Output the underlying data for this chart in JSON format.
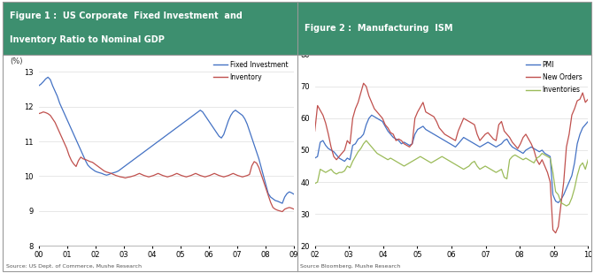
{
  "fig1_title_line1": "Figure 1 :  US Corporate  Fixed Investment  and",
  "fig1_title_line2": "Inventory Ratio to Nominal GDP",
  "fig2_title": "Figure 2 :  Manufacturing  ISM",
  "header_color": "#3d8f6f",
  "header_text_color": "#ffffff",
  "background_color": "#ffffff",
  "border_color": "#999999",
  "fig1_ylabel": "(%)",
  "fig1_ylim": [
    8,
    13.5
  ],
  "fig1_yticks": [
    8,
    9,
    10,
    11,
    12,
    13
  ],
  "fig1_xticks": [
    "00",
    "01",
    "02",
    "03",
    "04",
    "05",
    "06",
    "07",
    "08",
    "09"
  ],
  "fig1_source": "Source: US Dept. of Commerce, Mushe Research",
  "fig2_ylim": [
    20,
    80
  ],
  "fig2_yticks": [
    20,
    30,
    40,
    50,
    60,
    70,
    80
  ],
  "fig2_xticks": [
    "02",
    "03",
    "04",
    "05",
    "06",
    "07",
    "08",
    "09",
    "10"
  ],
  "fig2_source": "Source Bloomberg, Mushe Research",
  "fixed_inv_color": "#4472c4",
  "inventory1_color": "#c0504d",
  "pmi_color": "#4472c4",
  "new_orders_color": "#c0504d",
  "inventories2_color": "#9bbb59",
  "fixed_investment": [
    12.6,
    12.65,
    12.72,
    12.8,
    12.85,
    12.78,
    12.6,
    12.45,
    12.3,
    12.1,
    11.95,
    11.8,
    11.65,
    11.5,
    11.35,
    11.2,
    11.05,
    10.9,
    10.75,
    10.6,
    10.45,
    10.32,
    10.25,
    10.2,
    10.15,
    10.12,
    10.1,
    10.08,
    10.05,
    10.03,
    10.05,
    10.08,
    10.1,
    10.12,
    10.15,
    10.2,
    10.25,
    10.3,
    10.35,
    10.4,
    10.45,
    10.5,
    10.55,
    10.6,
    10.65,
    10.7,
    10.75,
    10.8,
    10.85,
    10.9,
    10.95,
    11.0,
    11.05,
    11.1,
    11.15,
    11.2,
    11.25,
    11.3,
    11.35,
    11.4,
    11.45,
    11.5,
    11.55,
    11.6,
    11.65,
    11.7,
    11.75,
    11.8,
    11.85,
    11.9,
    11.85,
    11.75,
    11.65,
    11.55,
    11.45,
    11.35,
    11.25,
    11.15,
    11.1,
    11.2,
    11.4,
    11.6,
    11.75,
    11.85,
    11.9,
    11.85,
    11.8,
    11.75,
    11.65,
    11.5,
    11.3,
    11.1,
    10.9,
    10.7,
    10.5,
    10.25,
    10.0,
    9.75,
    9.5,
    9.4,
    9.35,
    9.3,
    9.28,
    9.25,
    9.22,
    9.4,
    9.5,
    9.55,
    9.52,
    9.48
  ],
  "inventory1": [
    11.8,
    11.82,
    11.85,
    11.83,
    11.8,
    11.75,
    11.65,
    11.55,
    11.4,
    11.25,
    11.1,
    10.95,
    10.8,
    10.6,
    10.45,
    10.35,
    10.28,
    10.45,
    10.55,
    10.5,
    10.48,
    10.45,
    10.42,
    10.4,
    10.35,
    10.3,
    10.25,
    10.2,
    10.15,
    10.12,
    10.1,
    10.08,
    10.05,
    10.02,
    10.0,
    9.98,
    9.97,
    9.95,
    9.97,
    9.98,
    10.0,
    10.02,
    10.05,
    10.08,
    10.05,
    10.02,
    10.0,
    9.98,
    10.0,
    10.02,
    10.05,
    10.08,
    10.05,
    10.02,
    10.0,
    9.98,
    10.0,
    10.02,
    10.05,
    10.08,
    10.05,
    10.02,
    10.0,
    9.98,
    10.0,
    10.02,
    10.05,
    10.08,
    10.05,
    10.02,
    10.0,
    9.98,
    10.0,
    10.02,
    10.05,
    10.08,
    10.05,
    10.02,
    10.0,
    9.98,
    10.0,
    10.02,
    10.05,
    10.08,
    10.05,
    10.02,
    10.0,
    9.98,
    10.0,
    10.02,
    10.05,
    10.3,
    10.42,
    10.38,
    10.25,
    10.05,
    9.85,
    9.65,
    9.45,
    9.25,
    9.1,
    9.05,
    9.02,
    9.0,
    8.98,
    9.05,
    9.08,
    9.1,
    9.08,
    9.05
  ],
  "pmi": [
    47.5,
    48.0,
    52.5,
    53.0,
    51.5,
    50.5,
    50.0,
    49.5,
    48.5,
    47.5,
    47.0,
    46.5,
    47.5,
    47.0,
    51.5,
    52.0,
    53.5,
    54.0,
    55.0,
    58.0,
    60.0,
    61.0,
    60.5,
    60.0,
    59.5,
    59.0,
    57.5,
    56.0,
    55.0,
    54.0,
    53.5,
    53.0,
    52.0,
    52.5,
    52.0,
    51.5,
    52.0,
    55.0,
    56.5,
    57.0,
    57.5,
    56.5,
    56.0,
    55.5,
    55.0,
    54.5,
    54.0,
    53.5,
    53.0,
    52.5,
    52.0,
    51.5,
    51.0,
    52.0,
    53.0,
    54.0,
    53.5,
    53.0,
    52.5,
    52.0,
    51.5,
    51.0,
    51.5,
    52.0,
    52.5,
    52.0,
    51.5,
    51.0,
    51.5,
    52.0,
    53.0,
    53.5,
    52.0,
    51.0,
    50.5,
    50.0,
    49.5,
    49.0,
    50.0,
    50.5,
    51.0,
    50.5,
    50.0,
    49.5,
    50.0,
    49.0,
    48.5,
    48.0,
    36.0,
    34.0,
    33.5,
    34.5,
    36.0,
    38.0,
    40.0,
    42.0,
    46.0,
    52.0,
    55.0,
    57.0,
    58.0,
    59.0
  ],
  "new_orders": [
    56.0,
    64.0,
    62.5,
    61.0,
    58.5,
    55.0,
    51.0,
    48.0,
    47.0,
    48.0,
    49.0,
    50.0,
    53.0,
    52.0,
    60.0,
    63.0,
    65.0,
    68.0,
    71.0,
    70.0,
    67.0,
    65.0,
    63.0,
    62.0,
    61.0,
    60.0,
    58.0,
    57.0,
    55.5,
    55.0,
    53.0,
    53.5,
    53.0,
    52.0,
    51.5,
    51.0,
    52.0,
    60.0,
    62.0,
    63.5,
    65.0,
    62.0,
    61.5,
    61.0,
    60.5,
    59.0,
    57.0,
    56.0,
    55.0,
    54.5,
    54.0,
    53.5,
    53.0,
    56.0,
    58.0,
    60.0,
    59.5,
    59.0,
    58.5,
    58.0,
    55.0,
    53.0,
    54.0,
    55.0,
    55.5,
    54.5,
    53.5,
    53.0,
    58.0,
    59.0,
    56.0,
    55.0,
    54.0,
    52.5,
    51.5,
    50.5,
    52.0,
    54.0,
    55.0,
    53.5,
    52.0,
    50.0,
    47.0,
    45.5,
    47.0,
    45.0,
    43.0,
    40.0,
    25.0,
    24.0,
    26.0,
    33.0,
    40.0,
    51.0,
    55.0,
    61.0,
    63.0,
    65.5,
    66.0,
    68.0,
    65.0,
    66.0
  ],
  "inventories2": [
    39.5,
    40.0,
    44.0,
    43.5,
    43.0,
    43.5,
    44.0,
    43.0,
    42.5,
    43.0,
    43.0,
    43.5,
    45.0,
    44.5,
    46.5,
    48.0,
    49.5,
    50.5,
    52.0,
    53.0,
    52.0,
    51.0,
    50.0,
    49.0,
    48.5,
    48.0,
    47.5,
    47.0,
    47.5,
    47.0,
    46.5,
    46.0,
    45.5,
    45.0,
    45.5,
    46.0,
    46.5,
    47.0,
    47.5,
    48.0,
    47.5,
    47.0,
    46.5,
    46.0,
    46.5,
    47.0,
    47.5,
    48.0,
    47.5,
    47.0,
    46.5,
    46.0,
    45.5,
    45.0,
    44.5,
    44.0,
    44.5,
    45.0,
    46.0,
    46.5,
    45.0,
    44.0,
    44.5,
    45.0,
    44.5,
    44.0,
    43.5,
    43.0,
    43.5,
    44.0,
    41.5,
    41.0,
    47.0,
    48.0,
    48.5,
    48.0,
    47.5,
    47.0,
    47.5,
    47.0,
    46.5,
    46.0,
    47.5,
    48.0,
    49.0,
    48.5,
    48.0,
    47.5,
    43.0,
    37.0,
    36.0,
    33.5,
    33.0,
    32.5,
    33.0,
    35.0,
    38.0,
    42.0,
    45.0,
    46.0,
    44.0,
    47.0
  ]
}
